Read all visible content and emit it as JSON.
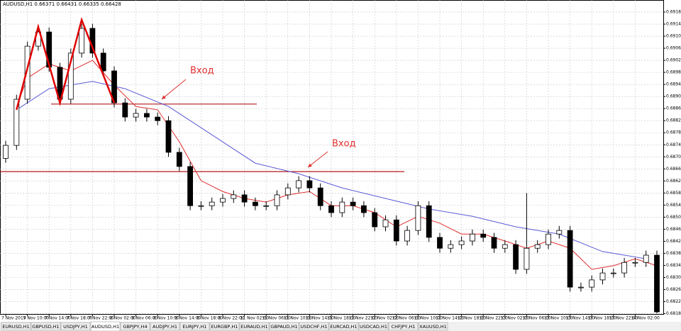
{
  "header": "AUDUSD,H1  0.66371 0.66431 0.66335 0.66428",
  "tabs": [
    "EURUSD,H1",
    "GBPUSD,H1",
    "USDJPY,H1",
    "AUDUSD,H1",
    "GBPJPY,H4",
    "AUDJPY,H1",
    "EURJPY,H1",
    "EURGBP,H1",
    "EURAUD,H1",
    "GBPAUD,H1",
    "USDCHF,H1",
    "EURCAD,H1",
    "USDCAD,H1",
    "CHFJPY,H1",
    "XAUUSD,H1"
  ],
  "active_tab": 3,
  "chart_data": {
    "type": "candlestick",
    "grid": true,
    "ylim": [
      0.68184,
      0.69225
    ],
    "yticks": [
      0.68185,
      0.68225,
      0.68265,
      0.68305,
      0.68345,
      0.68385,
      0.68425,
      0.68465,
      0.68505,
      0.68545,
      0.68585,
      0.68625,
      0.68665,
      0.68705,
      0.68745,
      0.68785,
      0.68825,
      0.68865,
      0.68905,
      0.68945,
      0.68985,
      0.69025,
      0.69065,
      0.69105,
      0.69145,
      0.69185
    ],
    "xlabels": [
      "7 Nov 2019",
      "7 Nov 10:00",
      "7 Nov 14:00",
      "7 Nov 18:00",
      "7 Nov 22:00",
      "8 Nov 02:00",
      "8 Nov 06:00",
      "8 Nov 10:00",
      "8 Nov 14:00",
      "8 Nov 18:00",
      "8 Nov 22:00",
      "11 Nov 02:00",
      "11 Nov 06:00",
      "11 Nov 10:00",
      "11 Nov 14:00",
      "11 Nov 18:00",
      "11 Nov 22:00",
      "12 Nov 02:00",
      "12 Nov 06:00",
      "12 Nov 10:00",
      "12 Nov 14:00",
      "12 Nov 18:00",
      "12 Nov 22:00",
      "13 Nov 02:00",
      "13 Nov 06:00",
      "13 Nov 10:00",
      "13 Nov 14:00",
      "13 Nov 18:00",
      "13 Nov 22:00",
      "14 Nov 02:00"
    ],
    "open": [
      0.687,
      0.68743,
      0.68896,
      0.69072,
      0.69119,
      0.69002,
      0.68896,
      0.69049,
      0.69131,
      0.69049,
      0.6899,
      0.68884,
      0.68837,
      0.68849,
      0.68837,
      0.68825,
      0.6872,
      0.68673,
      0.68543,
      0.68543,
      0.68555,
      0.68567,
      0.68579,
      0.68555,
      0.68543,
      0.68543,
      0.68579,
      0.68602,
      0.68626,
      0.68602,
      0.68543,
      0.6852,
      0.68555,
      0.68543,
      0.6852,
      0.68473,
      0.68496,
      0.68426,
      0.68461,
      0.68543,
      0.68438,
      0.68402,
      0.68414,
      0.68426,
      0.68449,
      0.68438,
      0.68402,
      0.68414,
      0.68332,
      0.68402,
      0.68414,
      0.68449,
      0.68461,
      0.68273,
      0.68273,
      0.68297,
      0.6832,
      0.6832,
      0.68355,
      0.68355,
      0.68379
    ],
    "high": [
      0.68758,
      0.68911,
      0.69087,
      0.69134,
      0.69134,
      0.69017,
      0.69064,
      0.69146,
      0.69146,
      0.69064,
      0.69005,
      0.68899,
      0.68864,
      0.68864,
      0.68852,
      0.6884,
      0.68735,
      0.68688,
      0.68558,
      0.6857,
      0.68582,
      0.68594,
      0.68594,
      0.6857,
      0.68558,
      0.68594,
      0.68617,
      0.68641,
      0.68641,
      0.68617,
      0.68558,
      0.6857,
      0.6857,
      0.68558,
      0.68535,
      0.68511,
      0.68511,
      0.68476,
      0.68558,
      0.68558,
      0.68453,
      0.68429,
      0.68441,
      0.68464,
      0.68464,
      0.68453,
      0.68429,
      0.68429,
      0.68585,
      0.68429,
      0.68464,
      0.68476,
      0.68476,
      0.68288,
      0.68312,
      0.68335,
      0.68335,
      0.6837,
      0.6837,
      0.68394,
      0.68394
    ],
    "low": [
      0.68685,
      0.68728,
      0.68881,
      0.69057,
      0.68987,
      0.68881,
      0.68881,
      0.69034,
      0.69034,
      0.68975,
      0.68869,
      0.68822,
      0.68822,
      0.68822,
      0.6881,
      0.68705,
      0.68658,
      0.68528,
      0.68528,
      0.68528,
      0.6854,
      0.68552,
      0.6854,
      0.68528,
      0.68528,
      0.68528,
      0.68564,
      0.68587,
      0.68587,
      0.68528,
      0.68505,
      0.68505,
      0.68528,
      0.68505,
      0.68458,
      0.68458,
      0.68411,
      0.68411,
      0.68446,
      0.68423,
      0.68387,
      0.68387,
      0.68399,
      0.68411,
      0.68423,
      0.68387,
      0.68387,
      0.68317,
      0.68317,
      0.68387,
      0.68399,
      0.68434,
      0.68258,
      0.68258,
      0.68258,
      0.68282,
      0.68305,
      0.68305,
      0.6834,
      0.6834,
      0.68186
    ],
    "close": [
      0.68743,
      0.68896,
      0.69072,
      0.69119,
      0.69002,
      0.68896,
      0.69049,
      0.69131,
      0.69049,
      0.6899,
      0.68884,
      0.68837,
      0.68849,
      0.68837,
      0.68825,
      0.6872,
      0.68673,
      0.68543,
      0.68543,
      0.68555,
      0.68567,
      0.68579,
      0.68555,
      0.68543,
      0.68543,
      0.68579,
      0.68602,
      0.68626,
      0.68602,
      0.68543,
      0.6852,
      0.68555,
      0.68543,
      0.6852,
      0.68473,
      0.68496,
      0.68426,
      0.68461,
      0.68543,
      0.68438,
      0.68402,
      0.68414,
      0.68426,
      0.68449,
      0.68438,
      0.68402,
      0.68414,
      0.68332,
      0.68402,
      0.68414,
      0.68449,
      0.68461,
      0.68273,
      0.68273,
      0.68297,
      0.6832,
      0.6832,
      0.68355,
      0.68355,
      0.68379,
      0.68191
    ],
    "lines": [
      {
        "color": "#5a5ad6",
        "x": [
          1,
          4,
          8,
          11,
          15,
          19,
          23,
          27,
          31,
          35,
          39,
          43,
          47,
          51,
          55,
          59
        ],
        "values": [
          0.68861,
          0.68931,
          0.68955,
          0.68931,
          0.68872,
          0.68778,
          0.68684,
          0.68649,
          0.68602,
          0.68567,
          0.68532,
          0.68508,
          0.68473,
          0.68449,
          0.68391,
          0.68367
        ]
      },
      {
        "color": "#e03030",
        "x": [
          1,
          2,
          4,
          6,
          8,
          10,
          12,
          14,
          16,
          18,
          20,
          22,
          24,
          26,
          28,
          30,
          32,
          34,
          36,
          38,
          40,
          42,
          44,
          46,
          48,
          50,
          52,
          54,
          56,
          58,
          60
        ],
        "values": [
          0.68872,
          0.68966,
          0.69013,
          0.6899,
          0.69025,
          0.68943,
          0.68872,
          0.68861,
          0.68755,
          0.68626,
          0.6859,
          0.68567,
          0.68555,
          0.68579,
          0.6859,
          0.68543,
          0.68543,
          0.6852,
          0.68473,
          0.68508,
          0.68485,
          0.68449,
          0.68449,
          0.68426,
          0.68402,
          0.68426,
          0.68402,
          0.68332,
          0.68344,
          0.68367,
          0.68344
        ]
      }
    ],
    "pattern": {
      "color": "#e00000",
      "x": [
        1,
        3,
        5,
        7,
        10
      ],
      "values": [
        0.68861,
        0.69136,
        0.68884,
        0.69159,
        0.68884
      ]
    },
    "levels": [
      {
        "value": 0.6888,
        "color": "#b01818"
      },
      {
        "value": 0.68656,
        "color": "#b01818"
      }
    ],
    "annotations": [
      {
        "text": "Вход",
        "color": "#e03030"
      },
      {
        "text": "Вход",
        "color": "#e03030"
      }
    ]
  }
}
